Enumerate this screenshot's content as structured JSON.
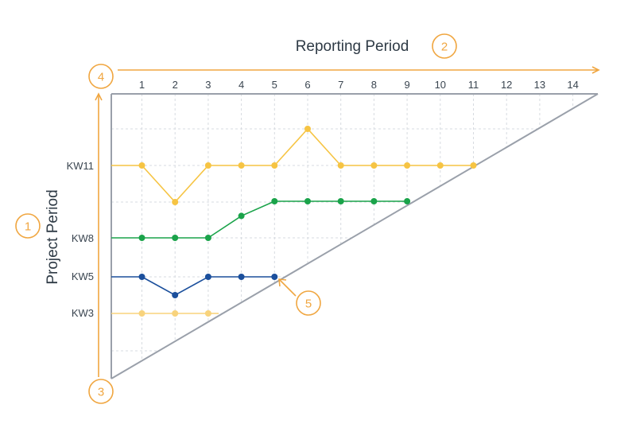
{
  "x_axis": {
    "title": "Reporting Period",
    "ticks": [
      "1",
      "2",
      "3",
      "4",
      "5",
      "6",
      "7",
      "8",
      "9",
      "10",
      "11",
      "12",
      "13",
      "14"
    ]
  },
  "y_axis": {
    "title": "Project Period",
    "labels": [
      "KW11",
      "KW8",
      "KW5",
      "KW3"
    ]
  },
  "markers": [
    {
      "id": "1",
      "label": "1"
    },
    {
      "id": "2",
      "label": "2"
    },
    {
      "id": "3",
      "label": "3"
    },
    {
      "id": "4",
      "label": "4"
    },
    {
      "id": "5",
      "label": "5"
    }
  ],
  "colors": {
    "accent": "#f0a640",
    "yellow": "#f6c443",
    "yellow_light": "#f8d37c",
    "green": "#1aa34a",
    "blue": "#1b4f9c",
    "grid": "#d7dbe0",
    "frame": "#9aa0aa"
  },
  "chart_data": {
    "type": "line",
    "title": "",
    "xlabel": "Reporting Period",
    "ylabel": "Project Period",
    "x_range": [
      1,
      14
    ],
    "series": [
      {
        "name": "KW11",
        "color": "#f6c443",
        "x": [
          1,
          2,
          3,
          4,
          5,
          6,
          7,
          8,
          9,
          10,
          11
        ],
        "level": [
          0,
          -1,
          0,
          0,
          0,
          1,
          0,
          0,
          0,
          0,
          0
        ]
      },
      {
        "name": "KW8",
        "color": "#1aa34a",
        "x": [
          1,
          2,
          3,
          4,
          5,
          6,
          7,
          8,
          9
        ],
        "level": [
          0,
          0,
          0,
          0.6,
          1,
          1,
          1,
          1,
          1
        ]
      },
      {
        "name": "KW5",
        "color": "#1b4f9c",
        "x": [
          1,
          2,
          3,
          4,
          5
        ],
        "level": [
          0,
          -0.5,
          0,
          0,
          0
        ]
      },
      {
        "name": "KW3",
        "color": "#f8d37c",
        "x": [
          1,
          2,
          3
        ],
        "level": [
          0,
          0,
          0
        ]
      }
    ]
  }
}
